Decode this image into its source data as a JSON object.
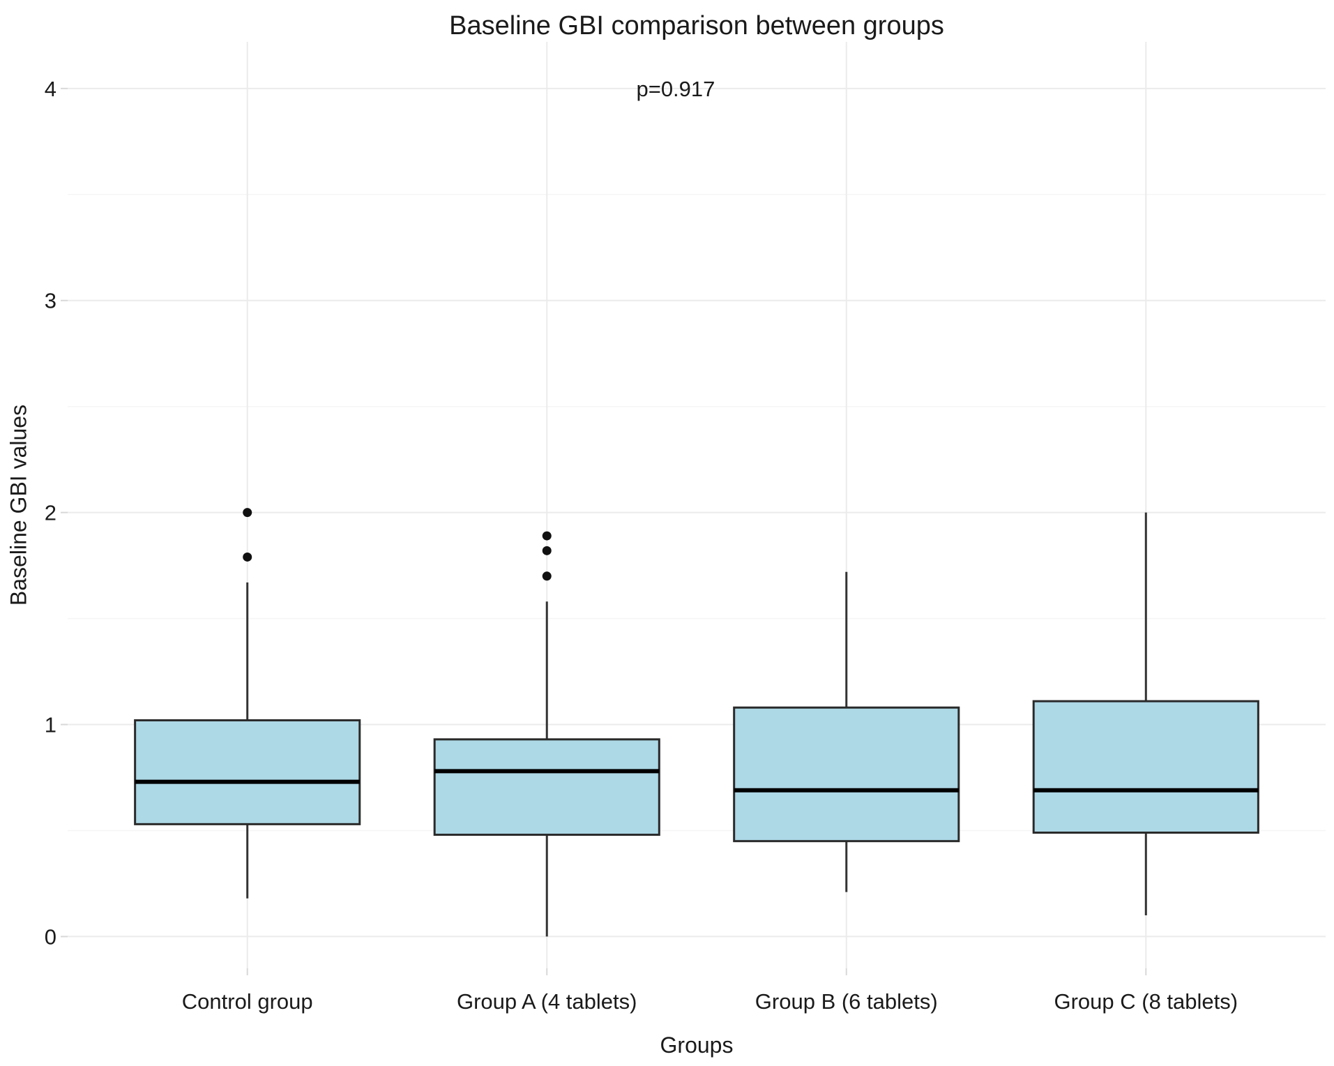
{
  "chart_data": {
    "type": "boxplot",
    "title": "Baseline GBI comparison between groups",
    "xlabel": "Groups",
    "ylabel": "Baseline GBI values",
    "annotation": {
      "text": "p=0.917",
      "x_unit": 2.43,
      "y_value": 4.0
    },
    "categories": [
      "Control group",
      "Group A (4 tablets)",
      "Group B (6 tablets)",
      "Group C (8 tablets)"
    ],
    "y_ticks": [
      0,
      1,
      2,
      3,
      4
    ],
    "y_minor_ticks": [
      0.5,
      1.5,
      2.5,
      3.5
    ],
    "y_range": [
      -0.15,
      4.22
    ],
    "x_range": [
      0.4,
      4.6
    ],
    "box_width_units": 0.75,
    "grid": true,
    "legend": "none",
    "series": [
      {
        "name": "Control group",
        "x_unit": 1,
        "whisker_low": 0.18,
        "q1": 0.53,
        "median": 0.73,
        "q3": 1.02,
        "whisker_high": 1.67,
        "outliers": [
          1.79,
          2.0
        ]
      },
      {
        "name": "Group A (4 tablets)",
        "x_unit": 2,
        "whisker_low": 0.0,
        "q1": 0.48,
        "median": 0.78,
        "q3": 0.93,
        "whisker_high": 1.58,
        "outliers": [
          1.7,
          1.82,
          1.89
        ]
      },
      {
        "name": "Group B (6 tablets)",
        "x_unit": 3,
        "whisker_low": 0.21,
        "q1": 0.45,
        "median": 0.69,
        "q3": 1.08,
        "whisker_high": 1.72,
        "outliers": []
      },
      {
        "name": "Group C (8 tablets)",
        "x_unit": 4,
        "whisker_low": 0.1,
        "q1": 0.49,
        "median": 0.69,
        "q3": 1.11,
        "whisker_high": 2.0,
        "outliers": []
      }
    ],
    "colors": {
      "background": "#ffffff",
      "box_fill": "#add8e6",
      "box_border": "#2a2a2a",
      "median": "#000000",
      "whisker": "#333333",
      "outlier": "#111111",
      "grid_major": "#ebebeb",
      "grid_minor": "#f5f5f5",
      "tick": "#d8d8d8",
      "text": "#1a1a1a"
    }
  }
}
